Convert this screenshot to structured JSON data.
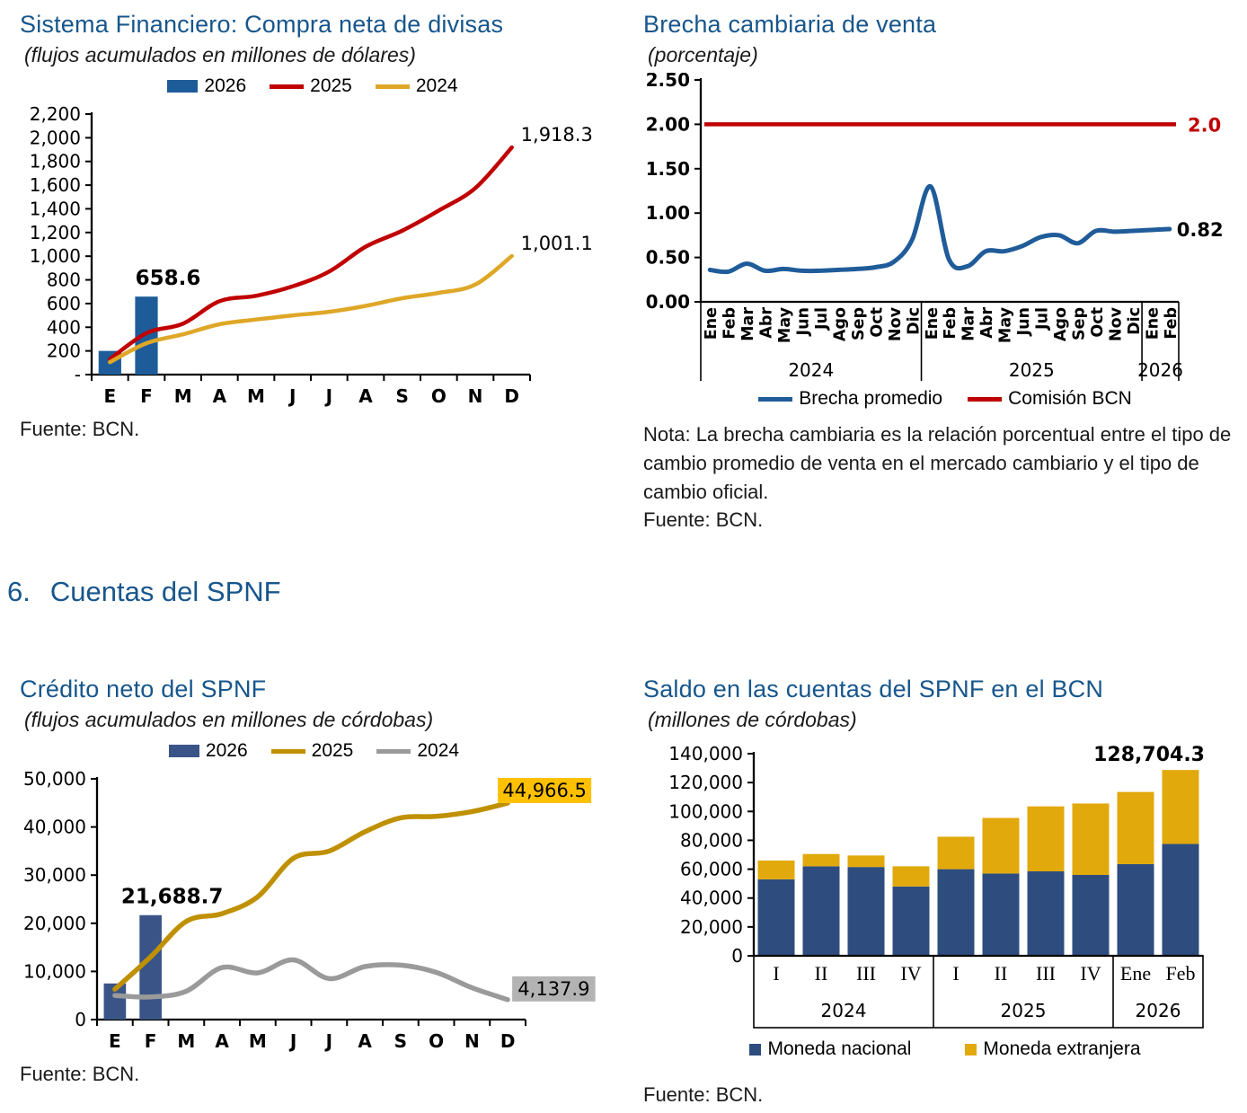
{
  "colors": {
    "title_blue": "#17568C",
    "axis_black": "#000000"
  },
  "section_header": {
    "number": "6.",
    "title": "Cuentas del SPNF"
  },
  "chart_data": [
    {
      "id": "compra-neta-divisas",
      "type": "bar+line",
      "title": "Sistema Financiero: Compra neta de divisas",
      "subtitle": "(flujos acumulados en millones de dólares)",
      "categories": [
        "E",
        "F",
        "M",
        "A",
        "M",
        "J",
        "J",
        "A",
        "S",
        "O",
        "N",
        "D"
      ],
      "ylim": [
        0,
        2200
      ],
      "ytick_step": 200,
      "zero_label": "-",
      "series": [
        {
          "name": "2026",
          "type": "bar",
          "color": "#1E5C99",
          "values": [
            200,
            658.6
          ],
          "annotation": {
            "index": 1,
            "text": "658.6"
          }
        },
        {
          "name": "2025",
          "type": "line",
          "color": "#C00000",
          "values": [
            130,
            350,
            430,
            620,
            665,
            745,
            870,
            1080,
            1215,
            1385,
            1575,
            1918.3
          ],
          "end_label": "1,918.3"
        },
        {
          "name": "2024",
          "type": "line",
          "color": "#DFA727",
          "values": [
            105,
            265,
            340,
            425,
            465,
            500,
            530,
            580,
            645,
            690,
            760,
            1001.1
          ],
          "end_label": "1,001.1"
        }
      ],
      "fuente": "Fuente: BCN."
    },
    {
      "id": "brecha-cambiaria-venta",
      "type": "line",
      "title": "Brecha cambiaria de venta",
      "subtitle": "(porcentaje)",
      "ylim": [
        0,
        2.5
      ],
      "ytick_step": 0.5,
      "x_groups": [
        {
          "year": "2024",
          "months": [
            "Ene",
            "Feb",
            "Mar",
            "Abr",
            "May",
            "Jun",
            "Jul",
            "Ago",
            "Sep",
            "Oct",
            "Nov",
            "Dic"
          ]
        },
        {
          "year": "2025",
          "months": [
            "Ene",
            "Feb",
            "Mar",
            "Abr",
            "May",
            "Jun",
            "Jul",
            "Ago",
            "Sep",
            "Oct",
            "Nov",
            "Dic"
          ]
        },
        {
          "year": "2026",
          "months": [
            "Ene",
            "Feb"
          ]
        }
      ],
      "series": [
        {
          "name": "Brecha promedio",
          "color": "#1F5C99",
          "values": [
            0.36,
            0.34,
            0.43,
            0.35,
            0.37,
            0.35,
            0.35,
            0.36,
            0.37,
            0.39,
            0.45,
            0.7,
            1.3,
            0.48,
            0.4,
            0.57,
            0.57,
            0.63,
            0.73,
            0.75,
            0.66,
            0.8,
            0.79,
            0.8,
            0.81,
            0.82
          ],
          "end_label": "0.82",
          "end_label_color": "#000000"
        },
        {
          "name": "Comisión BCN",
          "color": "#C00000",
          "value": 2.0,
          "end_label": "2.0",
          "end_label_color": "#C00000"
        }
      ],
      "note": "Nota: La brecha cambiaria es la relación porcentual entre el tipo de cambio promedio de venta en el mercado cambiario y el tipo de cambio oficial.",
      "fuente": "Fuente: BCN."
    },
    {
      "id": "credito-neto-spnf",
      "type": "bar+line",
      "title": "Crédito neto del SPNF",
      "subtitle": "(flujos acumulados en millones de córdobas)",
      "categories": [
        "E",
        "F",
        "M",
        "A",
        "M",
        "J",
        "J",
        "A",
        "S",
        "O",
        "N",
        "D"
      ],
      "ylim": [
        0,
        50000
      ],
      "ytick_step": 10000,
      "series": [
        {
          "name": "2026",
          "type": "bar",
          "color": "#3A5488",
          "values": [
            7500,
            21688.7
          ],
          "annotation": {
            "index": 1,
            "text": "21,688.7"
          }
        },
        {
          "name": "2025",
          "type": "line",
          "color": "#BF9000",
          "values": [
            6300,
            13000,
            20400,
            22000,
            25500,
            33500,
            35000,
            39000,
            41900,
            42200,
            43200,
            44966.5
          ],
          "end_label": "44,966.5",
          "end_box_color": "#FFC000"
        },
        {
          "name": "2024",
          "type": "line",
          "color": "#9A9A9A",
          "values": [
            5000,
            4700,
            5900,
            10800,
            9700,
            12400,
            8500,
            11000,
            11300,
            9800,
            6600,
            4137.9
          ],
          "end_label": "4,137.9",
          "end_box_color": "#B3B3B3"
        }
      ],
      "fuente": "Fuente: BCN."
    },
    {
      "id": "saldo-cuentas-spnf-bcn",
      "type": "stacked-bar",
      "title": "Saldo en las cuentas del SPNF en el BCN",
      "subtitle": "(millones de córdobas)",
      "ylim": [
        0,
        140000
      ],
      "ytick_step": 20000,
      "x_groups": [
        {
          "year": "2024",
          "labels": [
            "I",
            "II",
            "III",
            "IV"
          ]
        },
        {
          "year": "2025",
          "labels": [
            "I",
            "II",
            "III",
            "IV"
          ]
        },
        {
          "year": "2026",
          "labels": [
            "Ene",
            "Feb"
          ]
        }
      ],
      "series": [
        {
          "name": "Moneda nacional",
          "color": "#2E4D7E",
          "values": [
            53000,
            62000,
            61500,
            48000,
            60000,
            57000,
            58500,
            56000,
            63500,
            77500
          ]
        },
        {
          "name": "Moneda extranjera",
          "color": "#E2A90C",
          "values": [
            13000,
            8500,
            8000,
            14000,
            22500,
            38500,
            45000,
            49500,
            50000,
            51204.3
          ]
        }
      ],
      "annotation": {
        "index": 9,
        "text": "128,704.3"
      },
      "fuente": "Fuente: BCN."
    }
  ]
}
